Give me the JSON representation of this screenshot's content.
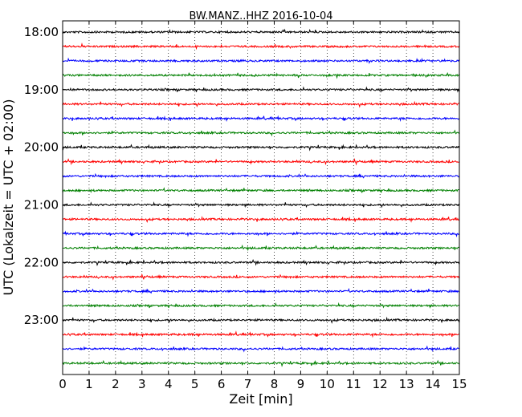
{
  "chart_data": {
    "type": "line",
    "title": "BW.MANZ..HHZ 2016-10-04",
    "xlabel": "Zeit  [min]",
    "ylabel": "UTC (Lokalzeit = UTC + 02:00)",
    "xlim": [
      0,
      15
    ],
    "x_ticks": [
      "0",
      "1",
      "2",
      "3",
      "4",
      "5",
      "6",
      "7",
      "8",
      "9",
      "10",
      "11",
      "12",
      "13",
      "14",
      "15"
    ],
    "y_ticks": [
      "18:00",
      "19:00",
      "20:00",
      "21:00",
      "22:00",
      "23:00"
    ],
    "trace_start_minutes": [
      0,
      15,
      30,
      45,
      60,
      75,
      90,
      105,
      120,
      135,
      150,
      165,
      180,
      195,
      210,
      225,
      240,
      255,
      270,
      285,
      300,
      315,
      330,
      345
    ],
    "trace_colors": [
      "#000000",
      "#ff0000",
      "#0000ff",
      "#008000"
    ],
    "grid": {
      "x": true,
      "style": "dotted"
    }
  }
}
